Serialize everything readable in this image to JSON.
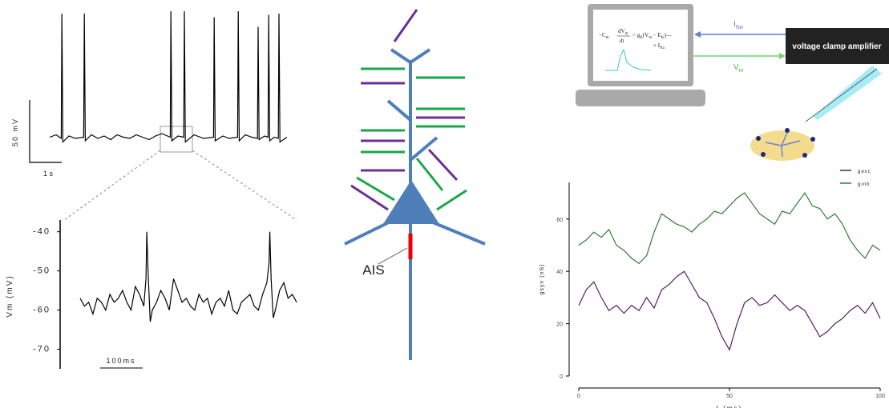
{
  "chart_data": [
    {
      "type": "line",
      "color": "#000000",
      "xlim": [
        -0.8,
        7.6
      ],
      "ylim": [
        -85,
        45
      ],
      "scale_bar_y": "50 mV",
      "scale_bar_x": "1 s",
      "x": [
        0,
        0.2,
        0.36,
        0.38,
        0.41,
        0.6,
        0.8,
        1.06,
        1.08,
        1.11,
        1.3,
        1.5,
        1.7,
        1.9,
        2.1,
        2.3,
        2.5,
        2.7,
        2.9,
        3.1,
        3.3,
        3.5,
        3.76,
        3.78,
        3.81,
        4.0,
        4.18,
        4.2,
        4.23,
        4.5,
        4.8,
        5.11,
        5.13,
        5.16,
        5.4,
        5.6,
        5.86,
        5.88,
        5.91,
        6.1,
        6.3,
        6.48,
        6.5,
        6.53,
        6.7,
        6.81,
        6.83,
        6.86,
        7.0,
        7.13,
        7.15,
        7.18,
        7.4
      ],
      "values": [
        -60,
        -58,
        -61,
        43,
        -64,
        -59,
        -61,
        -60,
        43,
        -63,
        -58,
        -61,
        -59,
        -62,
        -58,
        -60,
        -61,
        -58,
        -60,
        -62,
        -59,
        -57,
        -60,
        45,
        -63,
        -59,
        -60,
        45,
        -64,
        -58,
        -61,
        -60,
        40,
        -63,
        -59,
        -61,
        -60,
        45,
        -63,
        -58,
        -60,
        -61,
        32,
        -62,
        -59,
        -60,
        42,
        -63,
        -60,
        -61,
        43,
        -64,
        -60
      ]
    },
    {
      "type": "line",
      "color": "#000000",
      "ylabel": "Vm (mV)",
      "scale_bar_x": "100ms",
      "xlim": [
        0,
        510
      ],
      "ylim": [
        -75,
        -37
      ],
      "yticks": [
        -40,
        -50,
        -60,
        -70
      ],
      "x": [
        0,
        10,
        20,
        30,
        40,
        50,
        60,
        70,
        80,
        90,
        100,
        110,
        120,
        130,
        140,
        150,
        155,
        157,
        160,
        165,
        170,
        180,
        190,
        200,
        210,
        220,
        230,
        240,
        250,
        260,
        270,
        280,
        290,
        300,
        310,
        320,
        330,
        340,
        350,
        360,
        370,
        380,
        390,
        400,
        410,
        420,
        430,
        440,
        445,
        447,
        450,
        455,
        460,
        470,
        480,
        490,
        500,
        510
      ],
      "values": [
        -57,
        -59,
        -58,
        -61,
        -57,
        -58,
        -60,
        -56,
        -58,
        -57,
        -55,
        -58,
        -60,
        -54,
        -56,
        -59,
        -52,
        -40,
        -50,
        -63,
        -60,
        -58,
        -55,
        -57,
        -60,
        -52,
        -55,
        -58,
        -57,
        -59,
        -60,
        -56,
        -58,
        -57,
        -61,
        -58,
        -57,
        -59,
        -55,
        -60,
        -61,
        -58,
        -57,
        -56,
        -59,
        -60,
        -56,
        -53,
        -48,
        -40,
        -52,
        -62,
        -60,
        -55,
        -53,
        -57,
        -56,
        -58
      ]
    },
    {
      "type": "line",
      "xlabel": "t (ms)",
      "ylabel": "gsyn (nS)",
      "xlim": [
        0,
        100
      ],
      "ylim": [
        0,
        74
      ],
      "xticks": [
        0,
        50,
        100
      ],
      "yticks": [
        0,
        20,
        40,
        60
      ],
      "x": [
        0,
        2.5,
        5,
        7.5,
        10,
        12.5,
        15,
        17.5,
        20,
        22.5,
        25,
        27.5,
        30,
        32.5,
        35,
        37.5,
        40,
        42.5,
        45,
        47.5,
        50,
        52.5,
        55,
        57.5,
        60,
        62.5,
        65,
        67.5,
        70,
        72.5,
        75,
        77.5,
        80,
        82.5,
        85,
        87.5,
        90,
        92.5,
        95,
        97.5,
        100
      ],
      "series": [
        {
          "name": "gexc",
          "color": "#5a1e5e",
          "values": [
            27,
            33,
            36,
            30,
            25,
            27,
            24,
            27,
            25,
            30,
            26,
            33,
            35,
            38,
            40,
            35,
            30,
            28,
            22,
            15,
            10,
            20,
            28,
            30,
            27,
            28,
            31,
            28,
            25,
            27,
            25,
            20,
            15,
            17,
            20,
            22,
            25,
            27,
            24,
            28,
            22
          ]
        },
        {
          "name": "ginh",
          "color": "#2e7d32",
          "values": [
            50,
            52,
            55,
            53,
            56,
            50,
            48,
            45,
            43,
            46,
            55,
            62,
            60,
            58,
            57,
            55,
            58,
            60,
            63,
            62,
            65,
            68,
            70,
            66,
            62,
            60,
            58,
            63,
            62,
            66,
            70,
            65,
            64,
            60,
            62,
            58,
            52,
            48,
            45,
            50,
            48
          ]
        }
      ]
    }
  ],
  "diagram": {
    "ais_label": "AIS"
  },
  "voltage_clamp": {
    "amplifier": "voltage clamp amplifier",
    "current": "I",
    "current_sub": "Na",
    "voltage": "V",
    "voltage_sub": "m",
    "equation": [
      "−C",
      "m",
      "dV",
      "m",
      "dt",
      "= g",
      "K",
      "(V",
      "m",
      " − E",
      "K",
      ")—",
      "+ I",
      "Na"
    ]
  }
}
